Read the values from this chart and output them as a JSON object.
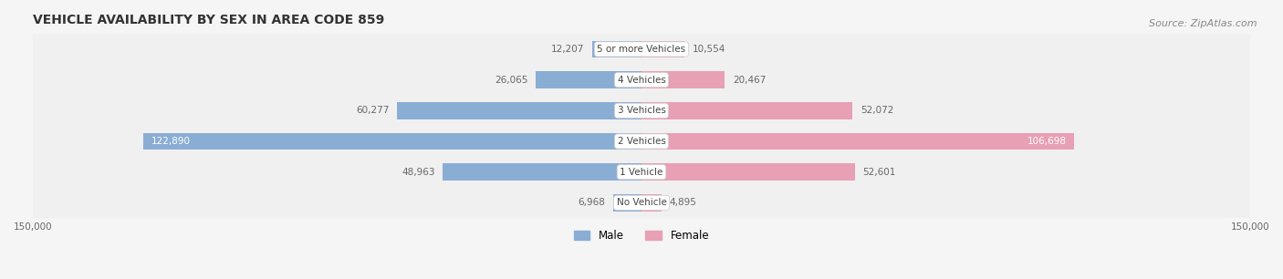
{
  "title": "VEHICLE AVAILABILITY BY SEX IN AREA CODE 859",
  "source": "Source: ZipAtlas.com",
  "categories": [
    "No Vehicle",
    "1 Vehicle",
    "2 Vehicles",
    "3 Vehicles",
    "4 Vehicles",
    "5 or more Vehicles"
  ],
  "male_values": [
    6968,
    48963,
    122890,
    60277,
    26065,
    12207
  ],
  "female_values": [
    4895,
    52601,
    106698,
    52072,
    20467,
    10554
  ],
  "male_color": "#8aadd4",
  "female_color": "#e8a0b4",
  "bar_bg_color": "#f0f0f0",
  "row_bg_color": "#f5f5f5",
  "axis_max": 150000,
  "legend_male": "Male",
  "legend_female": "Female",
  "title_fontsize": 10,
  "label_fontsize": 8.5,
  "source_fontsize": 8
}
